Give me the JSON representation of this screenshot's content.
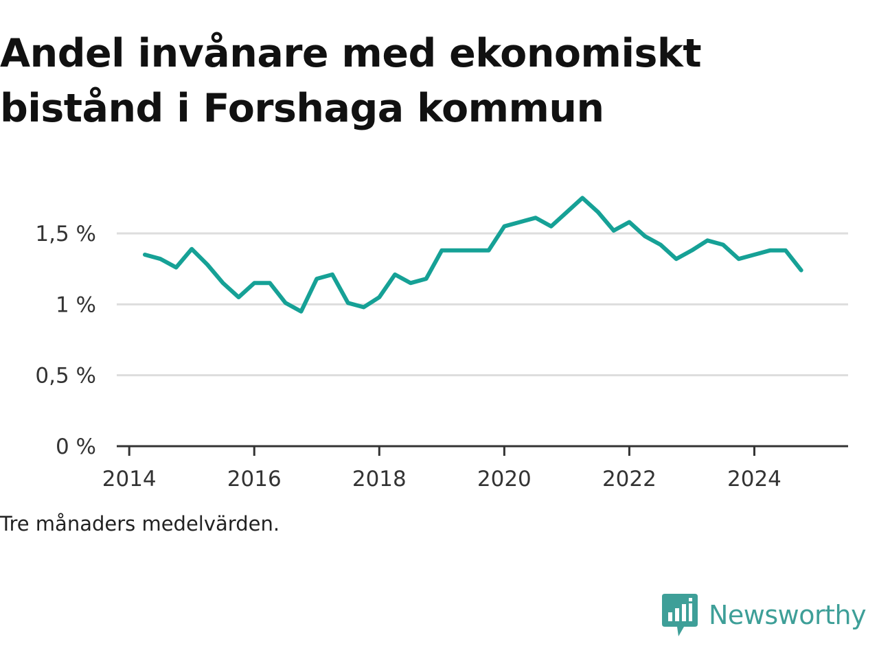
{
  "title": "Andel invånare med ekonomiskt bistånd i Forshaga kommun",
  "note": "Tre månaders medelvärden.",
  "brand": {
    "name": "Newsworthy",
    "icon": "newsworthy-logo-icon",
    "color": "#3e9f98"
  },
  "chart_data": {
    "type": "line",
    "title": "Andel invånare med ekonomiskt bistånd i Forshaga kommun",
    "xlabel": "",
    "ylabel": "",
    "unit": "%",
    "x_ticks": [
      {
        "label": "2014",
        "value": 2014
      },
      {
        "label": "2016",
        "value": 2016
      },
      {
        "label": "2018",
        "value": 2018
      },
      {
        "label": "2020",
        "value": 2020
      },
      {
        "label": "2022",
        "value": 2022
      },
      {
        "label": "2024",
        "value": 2024
      }
    ],
    "y_ticks": [
      {
        "label": "0 %",
        "value": 0
      },
      {
        "label": "0,5 %",
        "value": 0.5
      },
      {
        "label": "1 %",
        "value": 1
      },
      {
        "label": "1,5 %",
        "value": 1.5
      }
    ],
    "xlim": [
      2013.8,
      2025.5
    ],
    "ylim": [
      0,
      1.5
    ],
    "grid": true,
    "line_color": "#16a196",
    "series": [
      {
        "x": [
          2014.25,
          2014.5,
          2014.75,
          2015.0,
          2015.25,
          2015.5,
          2015.75,
          2016.0,
          2016.25,
          2016.5,
          2016.75,
          2017.0,
          2017.25,
          2017.5,
          2017.75,
          2018.0,
          2018.25,
          2018.5,
          2018.75,
          2019.0,
          2019.25,
          2019.5,
          2019.75,
          2020.0,
          2020.25,
          2020.5,
          2020.75,
          2021.0,
          2021.25,
          2021.5,
          2021.75,
          2022.0,
          2022.25,
          2022.5,
          2022.75,
          2023.0,
          2023.25,
          2023.5,
          2023.75,
          2024.0,
          2024.25,
          2024.5,
          2024.75
        ],
        "values": [
          1.35,
          1.32,
          1.26,
          1.39,
          1.28,
          1.15,
          1.05,
          1.15,
          1.15,
          1.01,
          0.95,
          1.18,
          1.21,
          1.01,
          0.98,
          1.05,
          1.21,
          1.15,
          1.18,
          1.38,
          1.38,
          1.38,
          1.38,
          1.55,
          1.58,
          1.61,
          1.55,
          1.65,
          1.75,
          1.65,
          1.52,
          1.58,
          1.48,
          1.42,
          1.32,
          1.38,
          1.45,
          1.42,
          1.32,
          1.35,
          1.38,
          1.38,
          1.24
        ]
      }
    ]
  }
}
